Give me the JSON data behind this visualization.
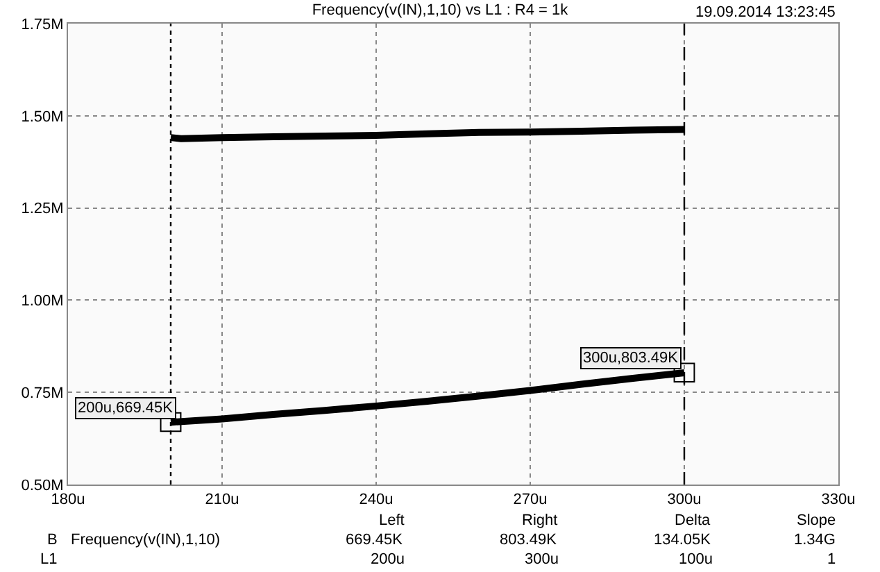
{
  "chart_data": {
    "type": "line",
    "title": "Frequency(v(IN),1,10) vs L1 : R4 = 1k",
    "series": [
      {
        "color": "#000000",
        "x": [
          200,
          202,
          210,
          220,
          230,
          240,
          250,
          260,
          270,
          280,
          290,
          300
        ],
        "values": [
          1.441,
          1.438,
          1.441,
          1.443,
          1.445,
          1.447,
          1.451,
          1.455,
          1.456,
          1.458,
          1.461,
          1.463
        ]
      },
      {
        "color": "#000000",
        "x": [
          200,
          210,
          220,
          230,
          240,
          250,
          260,
          270,
          280,
          290,
          300
        ],
        "values": [
          0.669,
          0.678,
          0.69,
          0.701,
          0.713,
          0.726,
          0.74,
          0.755,
          0.772,
          0.788,
          0.803
        ]
      }
    ],
    "xlim": [
      180,
      330
    ],
    "xticks": [
      {
        "value": 180,
        "label": "180u"
      },
      {
        "value": 210,
        "label": "210u"
      },
      {
        "value": 240,
        "label": "240u"
      },
      {
        "value": 270,
        "label": "270u"
      },
      {
        "value": 300,
        "label": "300u"
      },
      {
        "value": 330,
        "label": "330u"
      }
    ],
    "ylim": [
      0.5,
      1.75
    ],
    "yticks": [
      {
        "value": 0.5,
        "label": "0.50M"
      },
      {
        "value": 0.75,
        "label": "0.75M"
      },
      {
        "value": 1.0,
        "label": "1.00M"
      },
      {
        "value": 1.25,
        "label": "1.25M"
      },
      {
        "value": 1.5,
        "label": "1.50M"
      },
      {
        "value": 1.75,
        "label": "1.75M"
      }
    ],
    "grid": true,
    "marker": "none",
    "line_style": "solid",
    "ref_lines": [
      {
        "axis": "x",
        "value": 200,
        "line_style": "dotted"
      },
      {
        "axis": "x",
        "value": 300,
        "line_style": "dashed"
      }
    ],
    "annotations": [
      {
        "text": "200u,669.45K",
        "x": 200,
        "y": 0.66945
      },
      {
        "text": "300u,803.49K",
        "x": 300,
        "y": 0.80349
      },
      "19.09.2014 13:23:45",
      "Left",
      "Right",
      "Delta",
      "Slope",
      "B",
      "Frequency(v(IN),1,10)",
      "669.45K",
      "803.49K",
      "134.05K",
      "1.34G",
      "L1",
      "200u",
      "300u",
      "100u",
      "1"
    ]
  }
}
